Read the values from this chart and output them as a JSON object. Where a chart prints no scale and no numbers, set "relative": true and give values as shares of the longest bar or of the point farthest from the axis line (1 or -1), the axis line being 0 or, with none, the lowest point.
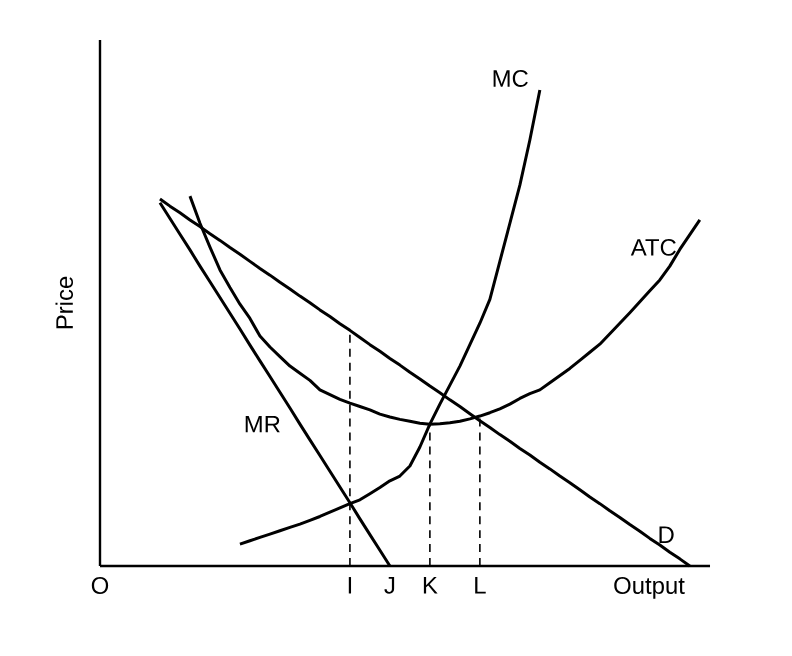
{
  "chart_data": {
    "type": "line",
    "relative": true,
    "xlabel": "Output",
    "ylabel": "Price",
    "grid": false,
    "marker": "none",
    "categories": [
      "O",
      null,
      null,
      null,
      null,
      null,
      null,
      null,
      null,
      null,
      null,
      null,
      null,
      null,
      null,
      null,
      null,
      null,
      null,
      null,
      null,
      null,
      null,
      null,
      null,
      "I",
      null,
      null,
      null,
      "J",
      null,
      null,
      null,
      "K",
      null,
      null,
      null,
      null,
      "L",
      null,
      null,
      null,
      null,
      null,
      null,
      null,
      null,
      null,
      null,
      null,
      null,
      null,
      null,
      null,
      null,
      null,
      null,
      null,
      null,
      null,
      null
    ],
    "series": [
      {
        "name": "MC",
        "color": "#000000",
        "line_style": "solid",
        "values": [
          null,
          null,
          null,
          null,
          null,
          null,
          null,
          null,
          null,
          null,
          null,
          null,
          null,
          null,
          0.046,
          0.053,
          0.06,
          0.067,
          0.074,
          0.081,
          0.088,
          0.096,
          0.104,
          0.113,
          0.122,
          0.131,
          0.139,
          0.152,
          0.165,
          0.179,
          0.189,
          0.21,
          0.25,
          0.298,
          0.34,
          0.38,
          0.42,
          0.465,
          0.51,
          0.56,
          0.64,
          0.72,
          0.8,
          0.895,
          1.0,
          null,
          null,
          null,
          null,
          null,
          null,
          null,
          null,
          null,
          null,
          null,
          null,
          null,
          null,
          null,
          null
        ]
      },
      {
        "name": "ATC",
        "color": "#000000",
        "line_style": "solid",
        "values": [
          null,
          null,
          null,
          null,
          null,
          null,
          null,
          null,
          null,
          0.777,
          0.72,
          0.67,
          0.622,
          0.585,
          0.55,
          0.52,
          0.483,
          0.46,
          0.44,
          0.42,
          0.405,
          0.39,
          0.37,
          0.36,
          0.35,
          0.342,
          0.335,
          0.328,
          0.319,
          0.313,
          0.308,
          0.304,
          0.3,
          0.298,
          0.299,
          0.301,
          0.304,
          0.309,
          0.315,
          0.322,
          0.33,
          0.34,
          0.352,
          0.362,
          0.37,
          0.385,
          0.4,
          0.415,
          0.432,
          0.449,
          0.466,
          0.488,
          0.51,
          0.532,
          0.555,
          0.578,
          0.601,
          0.63,
          0.665,
          0.696,
          0.727
        ]
      },
      {
        "name": "MR",
        "color": "#000000",
        "line_style": "solid",
        "values": [
          null,
          null,
          null,
          null,
          null,
          null,
          0.763,
          0.73,
          0.697,
          0.664,
          0.63,
          0.597,
          0.564,
          0.531,
          0.498,
          0.464,
          0.431,
          0.398,
          0.365,
          0.332,
          0.298,
          0.265,
          0.232,
          0.199,
          0.166,
          0.133,
          0.099,
          0.066,
          0.033,
          0,
          null,
          null,
          null,
          null,
          null,
          null,
          null,
          null,
          null,
          null,
          null,
          null,
          null,
          null,
          null,
          null,
          null,
          null,
          null,
          null,
          null,
          null,
          null,
          null,
          null,
          null,
          null,
          null,
          null,
          null,
          null
        ]
      },
      {
        "name": "D",
        "color": "#000000",
        "line_style": "solid",
        "values": [
          null,
          null,
          null,
          null,
          null,
          null,
          0.771,
          0.756,
          0.742,
          0.727,
          0.713,
          0.698,
          0.684,
          0.669,
          0.655,
          0.64,
          0.625,
          0.611,
          0.596,
          0.582,
          0.567,
          0.553,
          0.538,
          0.524,
          0.509,
          0.495,
          0.48,
          0.465,
          0.451,
          0.436,
          0.422,
          0.407,
          0.393,
          0.378,
          0.364,
          0.349,
          0.335,
          0.32,
          0.305,
          0.291,
          0.276,
          0.262,
          0.247,
          0.233,
          0.218,
          0.204,
          0.189,
          0.175,
          0.16,
          0.145,
          0.131,
          0.116,
          0.102,
          0.087,
          0.073,
          0.058,
          0.044,
          0.029,
          0.015,
          0,
          null
        ]
      },
      {
        "color": "#000000",
        "line_style": "dashed",
        "x": [
          "I",
          "I"
        ],
        "values": [
          0,
          0.495
        ]
      },
      {
        "color": "#000000",
        "line_style": "dashed",
        "x": [
          "K",
          "K"
        ],
        "values": [
          0,
          0.298
        ]
      },
      {
        "color": "#000000",
        "line_style": "dashed",
        "x": [
          "L",
          "L"
        ],
        "values": [
          0,
          0.31
        ]
      }
    ]
  }
}
